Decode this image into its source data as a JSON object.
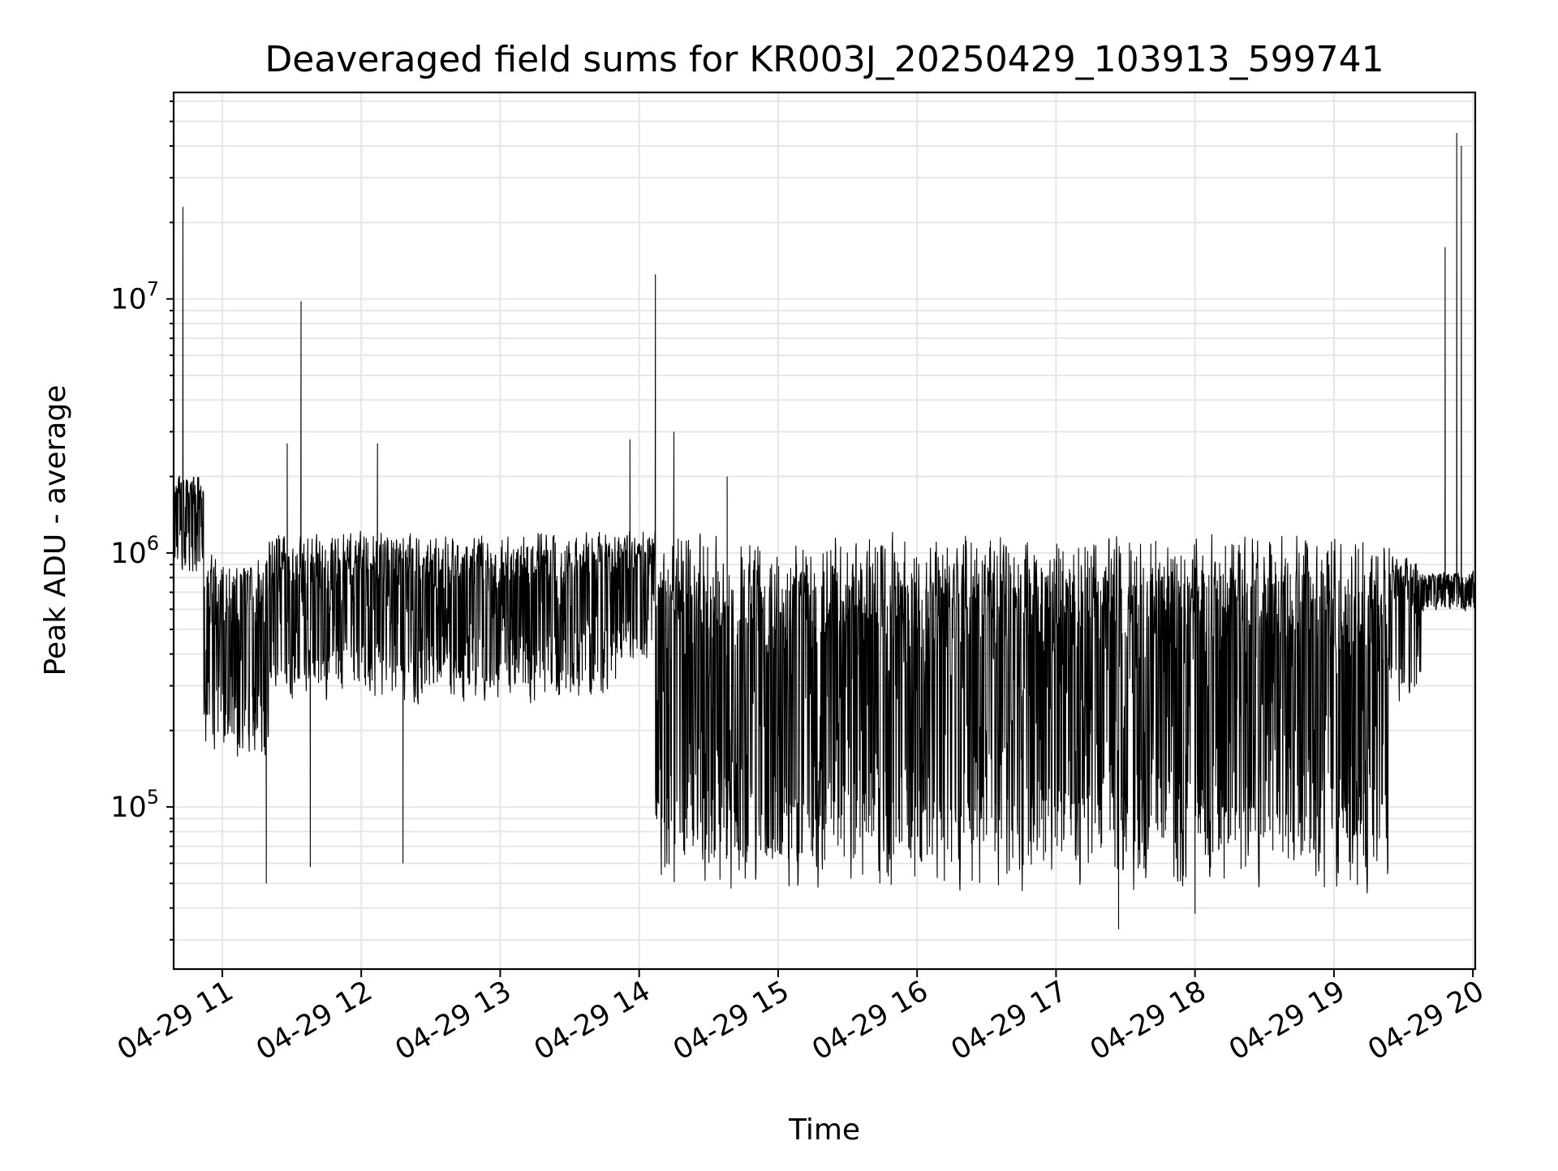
{
  "chart_data": {
    "type": "line",
    "title": "Deaveraged field sums for KR003J_20250429_103913_599741",
    "xlabel": "Time",
    "ylabel": "Peak ADU - average",
    "y_scale": "log",
    "ylim": [
      23000,
      65000000
    ],
    "xlim": [
      "2025-04-29 10:39",
      "2025-04-29 20:01"
    ],
    "grid": true,
    "line_color": "#000000",
    "grid_color": "#e6e6e6",
    "x_ticks": [
      "04-29 11",
      "04-29 12",
      "04-29 13",
      "04-29 14",
      "04-29 15",
      "04-29 16",
      "04-29 17",
      "04-29 18",
      "04-29 19",
      "04-29 20"
    ],
    "y_ticks": [
      {
        "base": "10",
        "exp": "5",
        "value": 100000
      },
      {
        "base": "10",
        "exp": "6",
        "value": 1000000
      },
      {
        "base": "10",
        "exp": "7",
        "value": 10000000
      }
    ],
    "segments": [
      {
        "start": "2025-04-29 10:39",
        "end": "2025-04-29 10:52",
        "low": 800000,
        "high": 2100000
      },
      {
        "start": "2025-04-29 10:52",
        "end": "2025-04-29 11:20",
        "low": 150000,
        "high": 1000000
      },
      {
        "start": "2025-04-29 11:20",
        "end": "2025-04-29 13:50",
        "low": 250000,
        "high": 1250000
      },
      {
        "start": "2025-04-29 13:50",
        "end": "2025-04-29 14:07",
        "low": 350000,
        "high": 1300000
      },
      {
        "start": "2025-04-29 14:07",
        "end": "2025-04-29 19:24",
        "low": 42000,
        "high": 1250000
      },
      {
        "start": "2025-04-29 19:24",
        "end": "2025-04-29 19:38",
        "low": 250000,
        "high": 1000000
      },
      {
        "start": "2025-04-29 19:38",
        "end": "2025-04-29 20:01",
        "low": 580000,
        "high": 850000
      }
    ],
    "spikes": [
      {
        "time": "2025-04-29 10:43",
        "value": 23000000
      },
      {
        "time": "2025-04-29 11:34",
        "value": 9800000
      },
      {
        "time": "2025-04-29 11:28",
        "value": 2700000
      },
      {
        "time": "2025-04-29 12:07",
        "value": 2700000
      },
      {
        "time": "2025-04-29 13:56",
        "value": 2800000
      },
      {
        "time": "2025-04-29 14:07",
        "value": 12500000
      },
      {
        "time": "2025-04-29 14:15",
        "value": 3000000
      },
      {
        "time": "2025-04-29 14:38",
        "value": 2000000
      },
      {
        "time": "2025-04-29 19:48",
        "value": 16000000
      },
      {
        "time": "2025-04-29 19:53",
        "value": 45000000
      },
      {
        "time": "2025-04-29 19:55",
        "value": 40000000
      }
    ],
    "dips": [
      {
        "time": "2025-04-29 11:19",
        "value": 50000
      },
      {
        "time": "2025-04-29 11:38",
        "value": 58000
      },
      {
        "time": "2025-04-29 12:18",
        "value": 60000
      },
      {
        "time": "2025-04-29 17:27",
        "value": 33000
      },
      {
        "time": "2025-04-29 18:00",
        "value": 38000
      }
    ]
  }
}
